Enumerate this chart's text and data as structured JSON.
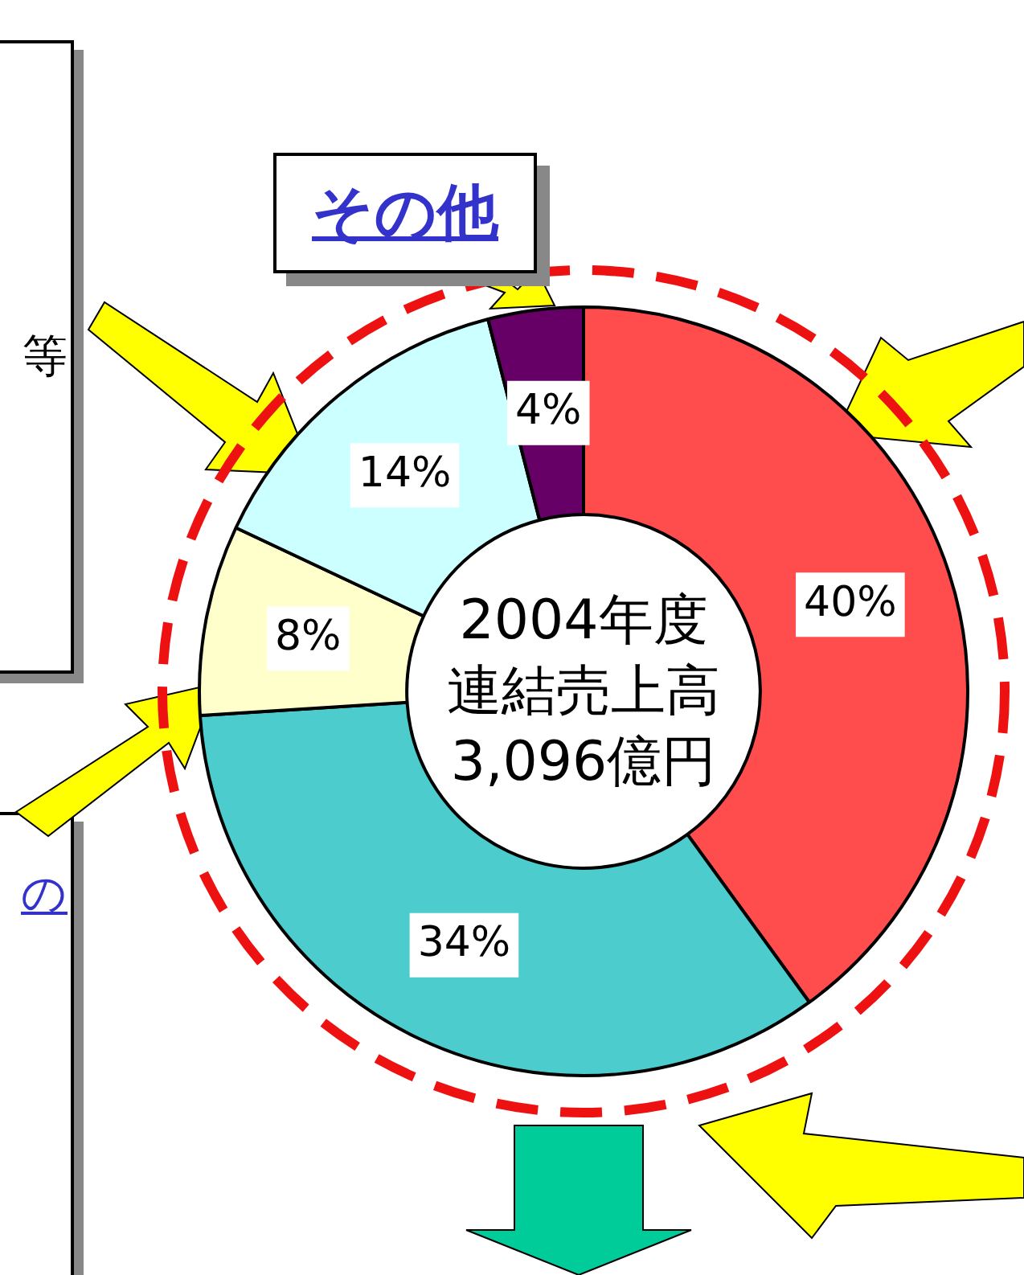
{
  "chart_data": {
    "type": "donut",
    "title": "2004年度連結売上高3,096億円",
    "categories": [
      null,
      null,
      null,
      null,
      "その他"
    ],
    "values": [
      40,
      34,
      8,
      14,
      4
    ],
    "colors": [
      "#ff4d4d",
      "#4ccccc",
      "#ffffcc",
      "#ccffff",
      "#660066"
    ],
    "value_labels": [
      "40%",
      "34%",
      "8%",
      "14%",
      "4%"
    ],
    "annotations": [
      "等",
      "の"
    ],
    "legend": false
  }
}
